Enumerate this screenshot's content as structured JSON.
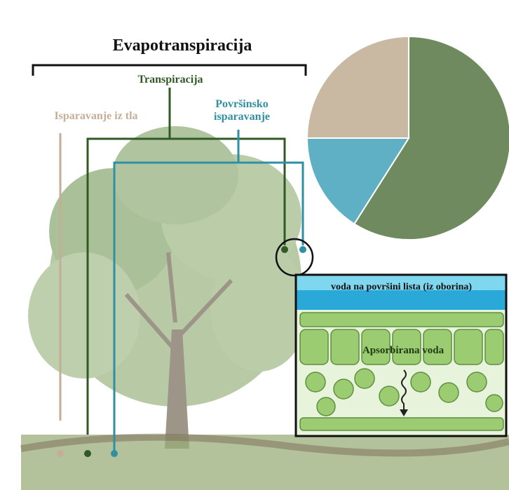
{
  "title": "Evapotranspiracija",
  "labels": {
    "transpiration": "Transpiracija",
    "surface": "Površinsko isparavanje",
    "soil": "Isparavanje iz tla"
  },
  "inset": {
    "water": "voda na površini lista (iz oborina)",
    "absorbed": "Apsorbirana voda"
  },
  "chart_data": {
    "type": "pie",
    "values": [
      59,
      16,
      25
    ],
    "colors": [
      "#6e8a5e",
      "#5fb0c4",
      "#c9b8a2"
    ]
  }
}
